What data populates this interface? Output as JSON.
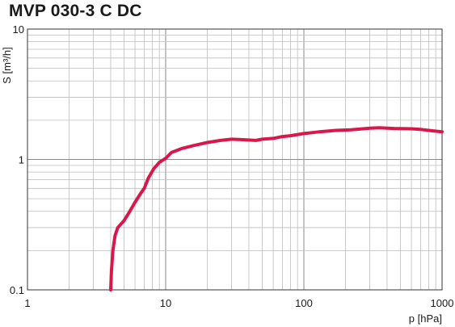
{
  "chart_data": {
    "type": "line",
    "title": "MVP 030-3 C DC",
    "xlabel": "p  [hPa]",
    "ylabel": "S [m³/h]",
    "xscale": "log",
    "yscale": "log",
    "xlim": [
      1,
      1000
    ],
    "ylim": [
      0.1,
      10
    ],
    "x_ticks": [
      {
        "value": 1,
        "label": "1"
      },
      {
        "value": 10,
        "label": "10"
      },
      {
        "value": 100,
        "label": "100"
      },
      {
        "value": 1000,
        "label": "1000"
      }
    ],
    "y_ticks": [
      {
        "value": 0.1,
        "label": "0.1"
      },
      {
        "value": 1,
        "label": "1"
      },
      {
        "value": 10,
        "label": "10"
      }
    ],
    "grid": true,
    "line_color": "#d8174a",
    "series": [
      {
        "x": [
          4.0,
          4.05,
          4.15,
          4.3,
          4.5,
          5.0,
          5.5,
          6.0,
          6.6,
          7.0,
          7.5,
          8.2,
          9.0,
          10.0,
          11.0,
          13.0,
          16.0,
          20.0,
          25.0,
          30.0,
          35.0,
          45.0,
          50.0,
          60.0,
          70.0,
          80.0,
          100.0,
          130.0,
          170.0,
          220.0,
          300.0,
          350.0,
          450.0,
          600.0,
          700.0,
          850.0,
          1000.0
        ],
        "y": [
          0.1,
          0.14,
          0.2,
          0.26,
          0.3,
          0.34,
          0.4,
          0.47,
          0.55,
          0.6,
          0.72,
          0.85,
          0.95,
          1.02,
          1.13,
          1.21,
          1.28,
          1.35,
          1.4,
          1.43,
          1.42,
          1.4,
          1.43,
          1.45,
          1.5,
          1.52,
          1.58,
          1.63,
          1.67,
          1.69,
          1.74,
          1.75,
          1.73,
          1.72,
          1.7,
          1.66,
          1.63
        ]
      }
    ]
  }
}
